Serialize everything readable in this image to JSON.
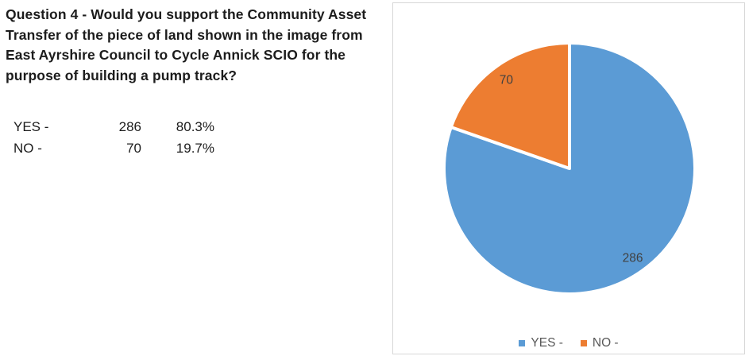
{
  "question": {
    "lines": [
      "Question 4 - Would you support the Community Asset",
      "Transfer of the piece of land shown in the image from",
      "East Ayrshire Council to Cycle Annick SCIO for the",
      "purpose of building a pump track?"
    ]
  },
  "results": {
    "rows": [
      {
        "label": "YES -",
        "count": "286",
        "pct": "80.3%"
      },
      {
        "label": "NO -",
        "count": "70",
        "pct": "19.7%"
      }
    ]
  },
  "chart_data": {
    "type": "pie",
    "categories": [
      "YES -",
      "NO -"
    ],
    "values": [
      286,
      70
    ],
    "percentages": [
      "80.3%",
      "19.7%"
    ],
    "data_labels": [
      "286",
      "70"
    ],
    "colors": [
      "#5B9BD5",
      "#ED7D31"
    ],
    "start_angle_deg": 0,
    "direction": "clockwise",
    "slice_border_color": "#FFFFFF",
    "data_label_color": "#404040",
    "legend_position": "bottom",
    "title": ""
  },
  "legend": {
    "items": [
      {
        "label": "YES -"
      },
      {
        "label": "NO -"
      }
    ]
  }
}
